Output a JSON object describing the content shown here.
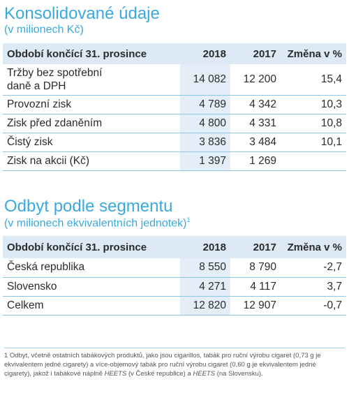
{
  "section1": {
    "title": "Konsolidované údaje",
    "subtitle": "(v milionech Kč)",
    "headers": [
      "Období končící 31. prosince",
      "2018",
      "2017",
      "Změna v %"
    ],
    "rows": [
      {
        "label_line1": "Tržby bez spotřební",
        "label_line2": "daně a DPH",
        "v2018": "14 082",
        "v2017": "12 200",
        "change": "15,4"
      },
      {
        "label": "Provozní zisk",
        "v2018": "4 789",
        "v2017": "4 342",
        "change": "10,3"
      },
      {
        "label": "Zisk před zdaněním",
        "v2018": "4 800",
        "v2017": "4 331",
        "change": "10,8"
      },
      {
        "label": "Čistý zisk",
        "v2018": "3 836",
        "v2017": "3 484",
        "change": "10,1"
      },
      {
        "label": "Zisk na akcii (Kč)",
        "v2018": "1 397",
        "v2017": "1 269",
        "change": ""
      }
    ]
  },
  "section2": {
    "title": "Odbyt podle segmentu",
    "subtitle": "(v milionech ekvivalentních jednotek)",
    "subtitle_sup": "1",
    "headers": [
      "Období končící 31. prosince",
      "2018",
      "2017",
      "Změna v %"
    ],
    "rows": [
      {
        "label": "Česká republika",
        "v2018": "8 550",
        "v2017": "8 790",
        "change": "-2,7"
      },
      {
        "label": "Slovensko",
        "v2018": "4 271",
        "v2017": "4 117",
        "change": "3,7"
      },
      {
        "label": "Celkem",
        "v2018": "12 820",
        "v2017": "12 907",
        "change": "-0,7"
      }
    ]
  },
  "footnote": {
    "part1": "1 Odbyt, včetně ostatních tabákových produktů, jako jsou cigarillos, tabák pro ruční výrobu cigaret (0,73 g je ekvivalentem jedné cigarety) a více-objemový tabák pro ruční výrobu cigaret (0,60 g je ekvivalentem jedné cigarety), jakož i tabákové náplně ",
    "italic1": "HEETS",
    "part2": " (v České republice) a ",
    "italic2": "HEETS",
    "part3": " (na Slovensku)."
  }
}
